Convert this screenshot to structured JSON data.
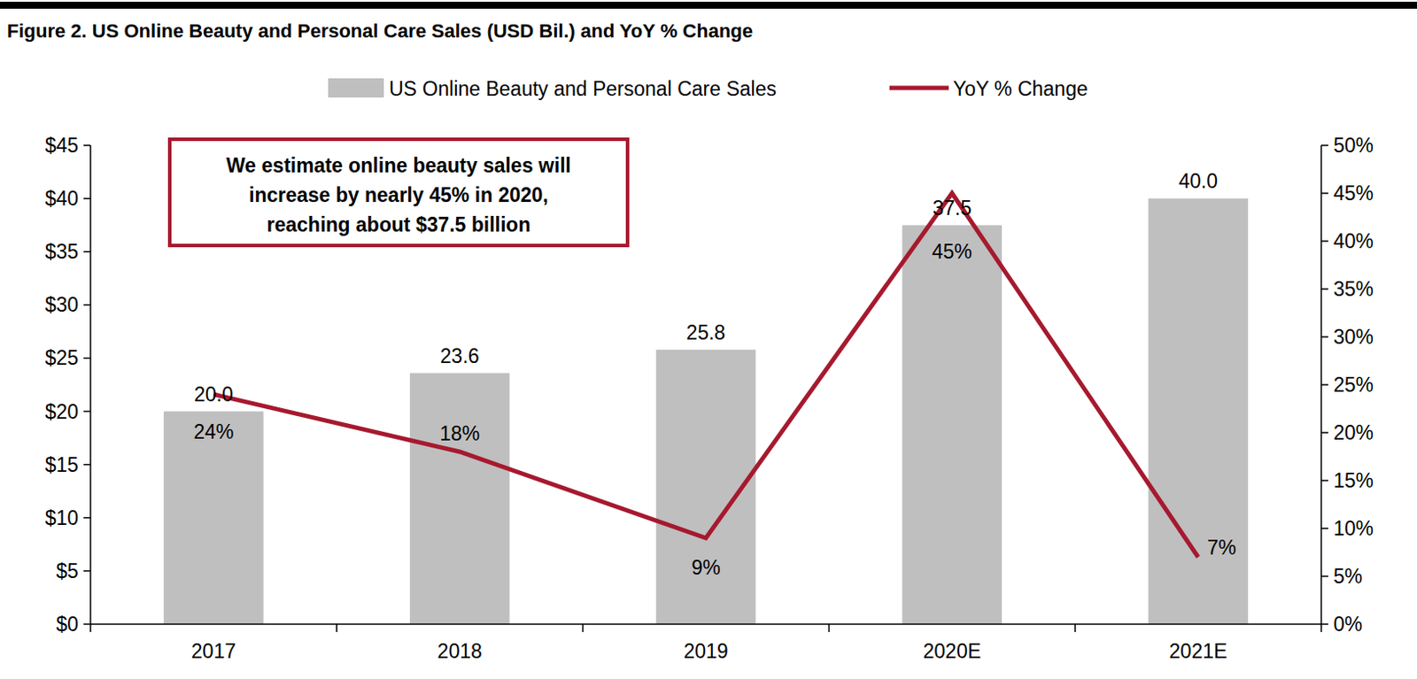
{
  "chart_data": {
    "type": "bar",
    "title": "Figure 2. US Online Beauty and Personal Care Sales (USD Bil.) and YoY % Change",
    "annotation": [
      "We estimate online beauty sales will",
      "increase by nearly 45% in 2020,",
      "reaching about $37.5 billion"
    ],
    "categories": [
      "2017",
      "2018",
      "2019",
      "2020E",
      "2021E"
    ],
    "series": [
      {
        "name": "US Online Beauty and Personal Care Sales",
        "type": "bar",
        "color": "#BFBFBF",
        "values": [
          20.0,
          23.6,
          25.8,
          37.5,
          40.0
        ],
        "value_labels": [
          "20.0",
          "23.6",
          "25.8",
          "37.5",
          "40.0"
        ]
      },
      {
        "name": "YoY % Change",
        "type": "line",
        "color": "#A6192E",
        "axis": "y2",
        "values": [
          24,
          18,
          9,
          45,
          7
        ],
        "value_labels": [
          "24%",
          "18%",
          "9%",
          "45%",
          "7%"
        ]
      }
    ],
    "ylim": [
      0,
      45
    ],
    "yticks": [
      {
        "value": 0,
        "label": "$0"
      },
      {
        "value": 5,
        "label": "$5"
      },
      {
        "value": 10,
        "label": "$10"
      },
      {
        "value": 15,
        "label": "$15"
      },
      {
        "value": 20,
        "label": "$20"
      },
      {
        "value": 25,
        "label": "$25"
      },
      {
        "value": 30,
        "label": "$30"
      },
      {
        "value": 35,
        "label": "$35"
      },
      {
        "value": 40,
        "label": "$40"
      },
      {
        "value": 45,
        "label": "$45"
      }
    ],
    "y2lim": [
      0,
      50
    ],
    "y2ticks": [
      {
        "value": 0,
        "label": "0%"
      },
      {
        "value": 5,
        "label": "5%"
      },
      {
        "value": 10,
        "label": "10%"
      },
      {
        "value": 15,
        "label": "15%"
      },
      {
        "value": 20,
        "label": "20%"
      },
      {
        "value": 25,
        "label": "25%"
      },
      {
        "value": 30,
        "label": "30%"
      },
      {
        "value": 35,
        "label": "35%"
      },
      {
        "value": 40,
        "label": "40%"
      },
      {
        "value": 45,
        "label": "45%"
      },
      {
        "value": 50,
        "label": "50%"
      }
    ],
    "grid": false,
    "legend": "top",
    "data_labels": true
  }
}
